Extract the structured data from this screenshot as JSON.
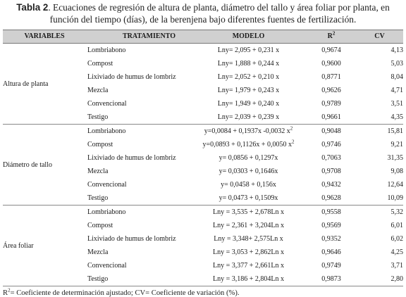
{
  "caption": {
    "label": "Tabla 2",
    "text": ". Ecuaciones de regresión de altura de planta, diámetro del tallo y área foliar por planta, en función del tiempo (días), de la berenjena bajo diferentes fuentes de fertilización."
  },
  "headers": {
    "variables": "VARIABLES",
    "tratamiento": "TRATAMIENTO",
    "modelo": "MODELO",
    "r2_base": "R",
    "r2_sup": "2",
    "cv": "CV"
  },
  "groups": [
    {
      "variable": "Altura de planta",
      "rows": [
        {
          "tratamiento": "Lombriabono",
          "modelo": "Lny= 2,095 + 0,231 x",
          "modelo_sup": "",
          "r2": "0,9674",
          "cv": "4,13"
        },
        {
          "tratamiento": "Compost",
          "modelo": "Lny= 1,888 + 0,244 x",
          "modelo_sup": "",
          "r2": "0,9600",
          "cv": "5,03"
        },
        {
          "tratamiento": "Lixiviado de humus de  lombriz",
          "modelo": "Lny= 2,052 + 0,210 x",
          "modelo_sup": "",
          "r2": "0,8771",
          "cv": "8,04"
        },
        {
          "tratamiento": "Mezcla",
          "modelo": "Lny= 1,979 + 0,243 x",
          "modelo_sup": "",
          "r2": "0,9626",
          "cv": "4,71"
        },
        {
          "tratamiento": "Convencional",
          "modelo": "Lny= 1,949 + 0,240 x",
          "modelo_sup": "",
          "r2": "0,9789",
          "cv": "3,51"
        },
        {
          "tratamiento": "Testigo",
          "modelo": "Lny= 2,039 + 0,239 x",
          "modelo_sup": "",
          "r2": "0,9661",
          "cv": "4,35"
        }
      ]
    },
    {
      "variable": "Diámetro de tallo",
      "rows": [
        {
          "tratamiento": "Lombriabono",
          "modelo": "y=0,0084 + 0,1937x -0,0032 x",
          "modelo_sup": "2",
          "r2": "0,9048",
          "cv": "15,81"
        },
        {
          "tratamiento": "Compost",
          "modelo": "y=0,0893 + 0,1126x + 0,0050 x",
          "modelo_sup": "2",
          "r2": "0,9746",
          "cv": "9,21"
        },
        {
          "tratamiento": "Lixiviado de humus de lombriz",
          "modelo": "y= 0,0856 + 0,1297x",
          "modelo_sup": "",
          "r2": "0,7063",
          "cv": "31,35"
        },
        {
          "tratamiento": "Mezcla",
          "modelo": "y= 0,0303 + 0,1646x",
          "modelo_sup": "",
          "r2": "0,9708",
          "cv": "9,08"
        },
        {
          "tratamiento": "Convencional",
          "modelo": "y= 0,0458 + 0,156x",
          "modelo_sup": "",
          "r2": "0,9432",
          "cv": "12,64"
        },
        {
          "tratamiento": "Testigo",
          "modelo": "y= 0,0473 + 0,1509x",
          "modelo_sup": "",
          "r2": "0,9628",
          "cv": "10,09"
        }
      ]
    },
    {
      "variable": "Área foliar",
      "rows": [
        {
          "tratamiento": "Lombriabono",
          "modelo": "Lny = 3,535 + 2,678Ln x",
          "modelo_sup": "",
          "r2": "0,9558",
          "cv": "5,32"
        },
        {
          "tratamiento": "Compost",
          "modelo": "Lny =  2,361 + 3,204Ln x",
          "modelo_sup": "",
          "r2": "0,9569",
          "cv": "6,01"
        },
        {
          "tratamiento": "Lixiviado de humus de lombriz",
          "modelo": "Lny = 3,348+ 2,575Ln x",
          "modelo_sup": "",
          "r2": "0,9352",
          "cv": "6,02"
        },
        {
          "tratamiento": "Mezcla",
          "modelo": "Lny = 3,053 + 2,862Ln x",
          "modelo_sup": "",
          "r2": "0,9646",
          "cv": "4,25"
        },
        {
          "tratamiento": "Convencional",
          "modelo": "Lny = 3,377 + 2,661Ln x",
          "modelo_sup": "",
          "r2": "0,9749",
          "cv": "3,71"
        },
        {
          "tratamiento": "Testigo",
          "modelo": "Lny = 3,186 + 2,804Ln x",
          "modelo_sup": "",
          "r2": "0,9873",
          "cv": "2,80"
        }
      ]
    }
  ],
  "footnote": {
    "r2_base": "R",
    "r2_sup": "2",
    "text": "= Coeficiente de determinación ajustado; CV= Coeficiente de variación (%)."
  }
}
